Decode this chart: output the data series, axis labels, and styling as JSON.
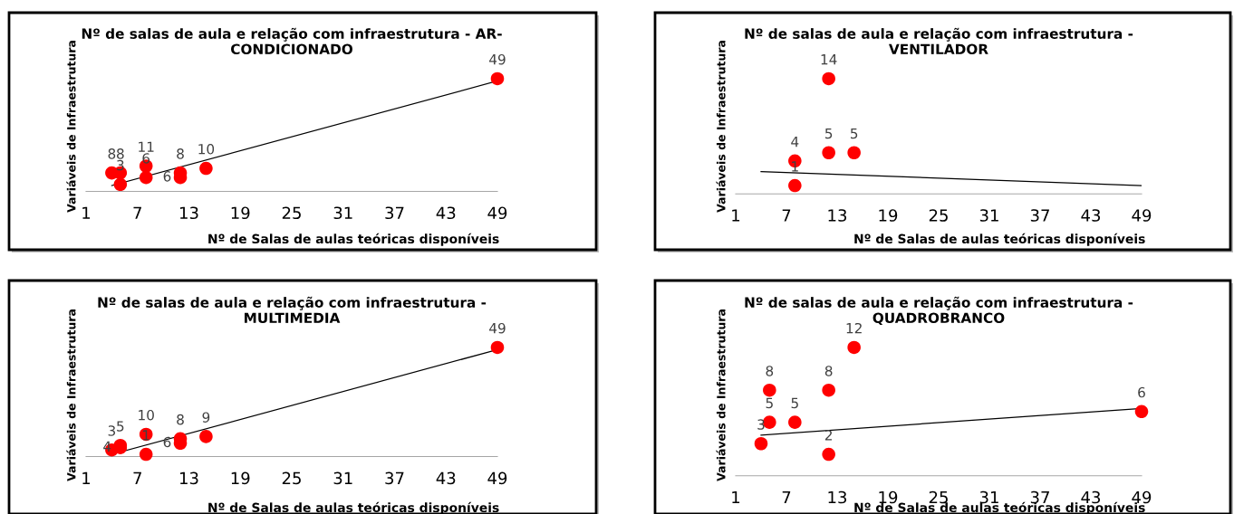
{
  "chart_data": [
    {
      "type": "scatter",
      "title": "Nº de salas de aula e relação com infraestrutura - AR-\nCONDICIONADO",
      "xlabel": "Nº de Salas de aulas teóricas disponíveis",
      "ylabel": "Variáveis de Infraestrutura",
      "xlim": [
        1,
        49
      ],
      "xticks": [
        1,
        7,
        13,
        19,
        25,
        31,
        37,
        43,
        49
      ],
      "tick_labels": "x",
      "series": [
        {
          "type": "scatter",
          "color": "#ff0000",
          "marker": "circle",
          "data_labels": true,
          "x": [
            4,
            5,
            5,
            8,
            8,
            12,
            12,
            15,
            49
          ],
          "values": [
            8,
            8,
            3,
            11,
            6,
            8,
            6,
            10,
            49
          ]
        },
        {
          "type": "line",
          "color": "#000000",
          "x": [
            4,
            49
          ],
          "values": [
            2.5,
            48
          ]
        }
      ]
    },
    {
      "type": "scatter",
      "title": "Nº de salas de aula e relação com infraestrutura -\nVENTILADOR",
      "xlabel": "Nº de Salas de aulas teóricas disponíveis",
      "ylabel": "Variáveis de Infraestrutura",
      "xlim": [
        1,
        49
      ],
      "xticks": [
        1,
        7,
        13,
        19,
        25,
        31,
        37,
        43,
        49
      ],
      "tick_labels": "x",
      "series": [
        {
          "type": "scatter",
          "color": "#ff0000",
          "marker": "circle",
          "data_labels": true,
          "x": [
            8,
            8,
            12,
            12,
            15
          ],
          "values": [
            4,
            1,
            14,
            5,
            5
          ]
        },
        {
          "type": "line",
          "color": "#000000",
          "x": [
            4,
            49
          ],
          "values": [
            2.7,
            1
          ]
        }
      ]
    },
    {
      "type": "scatter",
      "title": "Nº de salas de aula e relação com infraestrutura -\nMULTIMEDIA",
      "xlabel": "Nº de Salas de aulas teóricas disponíveis",
      "ylabel": "Variáveis de Infraestrutura",
      "xlim": [
        1,
        49
      ],
      "xticks": [
        1,
        7,
        13,
        19,
        25,
        31,
        37,
        43,
        49
      ],
      "tick_labels": "x",
      "series": [
        {
          "type": "scatter",
          "color": "#ff0000",
          "marker": "circle",
          "data_labels": true,
          "x": [
            4,
            5,
            5,
            8,
            8,
            12,
            12,
            15,
            49
          ],
          "values": [
            3,
            4,
            5,
            10,
            1,
            8,
            6,
            9,
            49
          ]
        },
        {
          "type": "line",
          "color": "#000000",
          "x": [
            4,
            49
          ],
          "values": [
            1,
            48
          ]
        }
      ]
    },
    {
      "type": "scatter",
      "title": "Nº de salas de aula e relação com infraestrutura -\nQUADROBRANCO",
      "xlabel": "Nº de Salas de aulas teóricas disponíveis",
      "ylabel": "Variáveis de Infraestrutura",
      "xlim": [
        1,
        49
      ],
      "xticks": [
        1,
        7,
        13,
        19,
        25,
        31,
        37,
        43,
        49
      ],
      "tick_labels": "x",
      "series": [
        {
          "type": "scatter",
          "color": "#ff0000",
          "marker": "circle",
          "data_labels": true,
          "x": [
            4,
            5,
            5,
            8,
            12,
            12,
            15,
            49
          ],
          "values": [
            3,
            5,
            8,
            5,
            8,
            2,
            12,
            6
          ]
        },
        {
          "type": "line",
          "color": "#000000",
          "x": [
            4,
            49
          ],
          "values": [
            3.8,
            6.3
          ]
        }
      ]
    }
  ]
}
